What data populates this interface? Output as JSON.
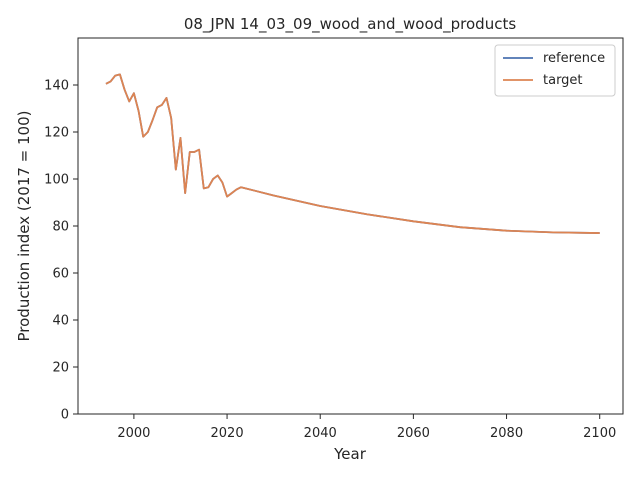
{
  "chart_data": {
    "type": "line",
    "title": "08_JPN 14_03_09_wood_and_wood_products",
    "xlabel": "Year",
    "ylabel": "Production index (2017 = 100)",
    "xlim": [
      1988,
      2105
    ],
    "ylim": [
      0,
      160
    ],
    "xticks": [
      2000,
      2020,
      2040,
      2060,
      2080,
      2100
    ],
    "yticks": [
      0,
      20,
      40,
      60,
      80,
      100,
      120,
      140
    ],
    "grid": false,
    "legend_position": "top-right",
    "series": [
      {
        "name": "reference",
        "color": "#4c72b0",
        "x": [
          1994,
          1995,
          1996,
          1997,
          1998,
          1999,
          2000,
          2001,
          2002,
          2003,
          2004,
          2005,
          2006,
          2007,
          2008,
          2009,
          2010,
          2011,
          2012,
          2013,
          2014,
          2015,
          2016,
          2017,
          2018,
          2019,
          2020,
          2021,
          2022,
          2023,
          2030,
          2040,
          2050,
          2060,
          2070,
          2080,
          2090,
          2100
        ],
        "values": [
          140.5,
          141.5,
          144,
          144.5,
          138,
          133,
          136.5,
          129,
          118,
          120,
          125,
          130.5,
          131.5,
          134.5,
          126,
          104,
          117.5,
          94,
          111.5,
          111.5,
          112.5,
          96,
          96.5,
          100,
          101.5,
          98.5,
          92.5,
          94,
          95.5,
          96.5,
          93,
          88.5,
          85,
          82,
          79.5,
          78,
          77.3,
          77
        ]
      },
      {
        "name": "target",
        "color": "#dd8452",
        "x": [
          1994,
          1995,
          1996,
          1997,
          1998,
          1999,
          2000,
          2001,
          2002,
          2003,
          2004,
          2005,
          2006,
          2007,
          2008,
          2009,
          2010,
          2011,
          2012,
          2013,
          2014,
          2015,
          2016,
          2017,
          2018,
          2019,
          2020,
          2021,
          2022,
          2023,
          2030,
          2040,
          2050,
          2060,
          2070,
          2080,
          2090,
          2100
        ],
        "values": [
          140.5,
          141.5,
          144,
          144.5,
          138,
          133,
          136.5,
          129,
          118,
          120,
          125,
          130.5,
          131.5,
          134.5,
          126,
          104,
          117.5,
          94,
          111.5,
          111.5,
          112.5,
          96,
          96.5,
          100,
          101.5,
          98.5,
          92.5,
          94,
          95.5,
          96.5,
          93,
          88.5,
          85,
          82,
          79.5,
          78,
          77.3,
          77
        ]
      }
    ]
  }
}
